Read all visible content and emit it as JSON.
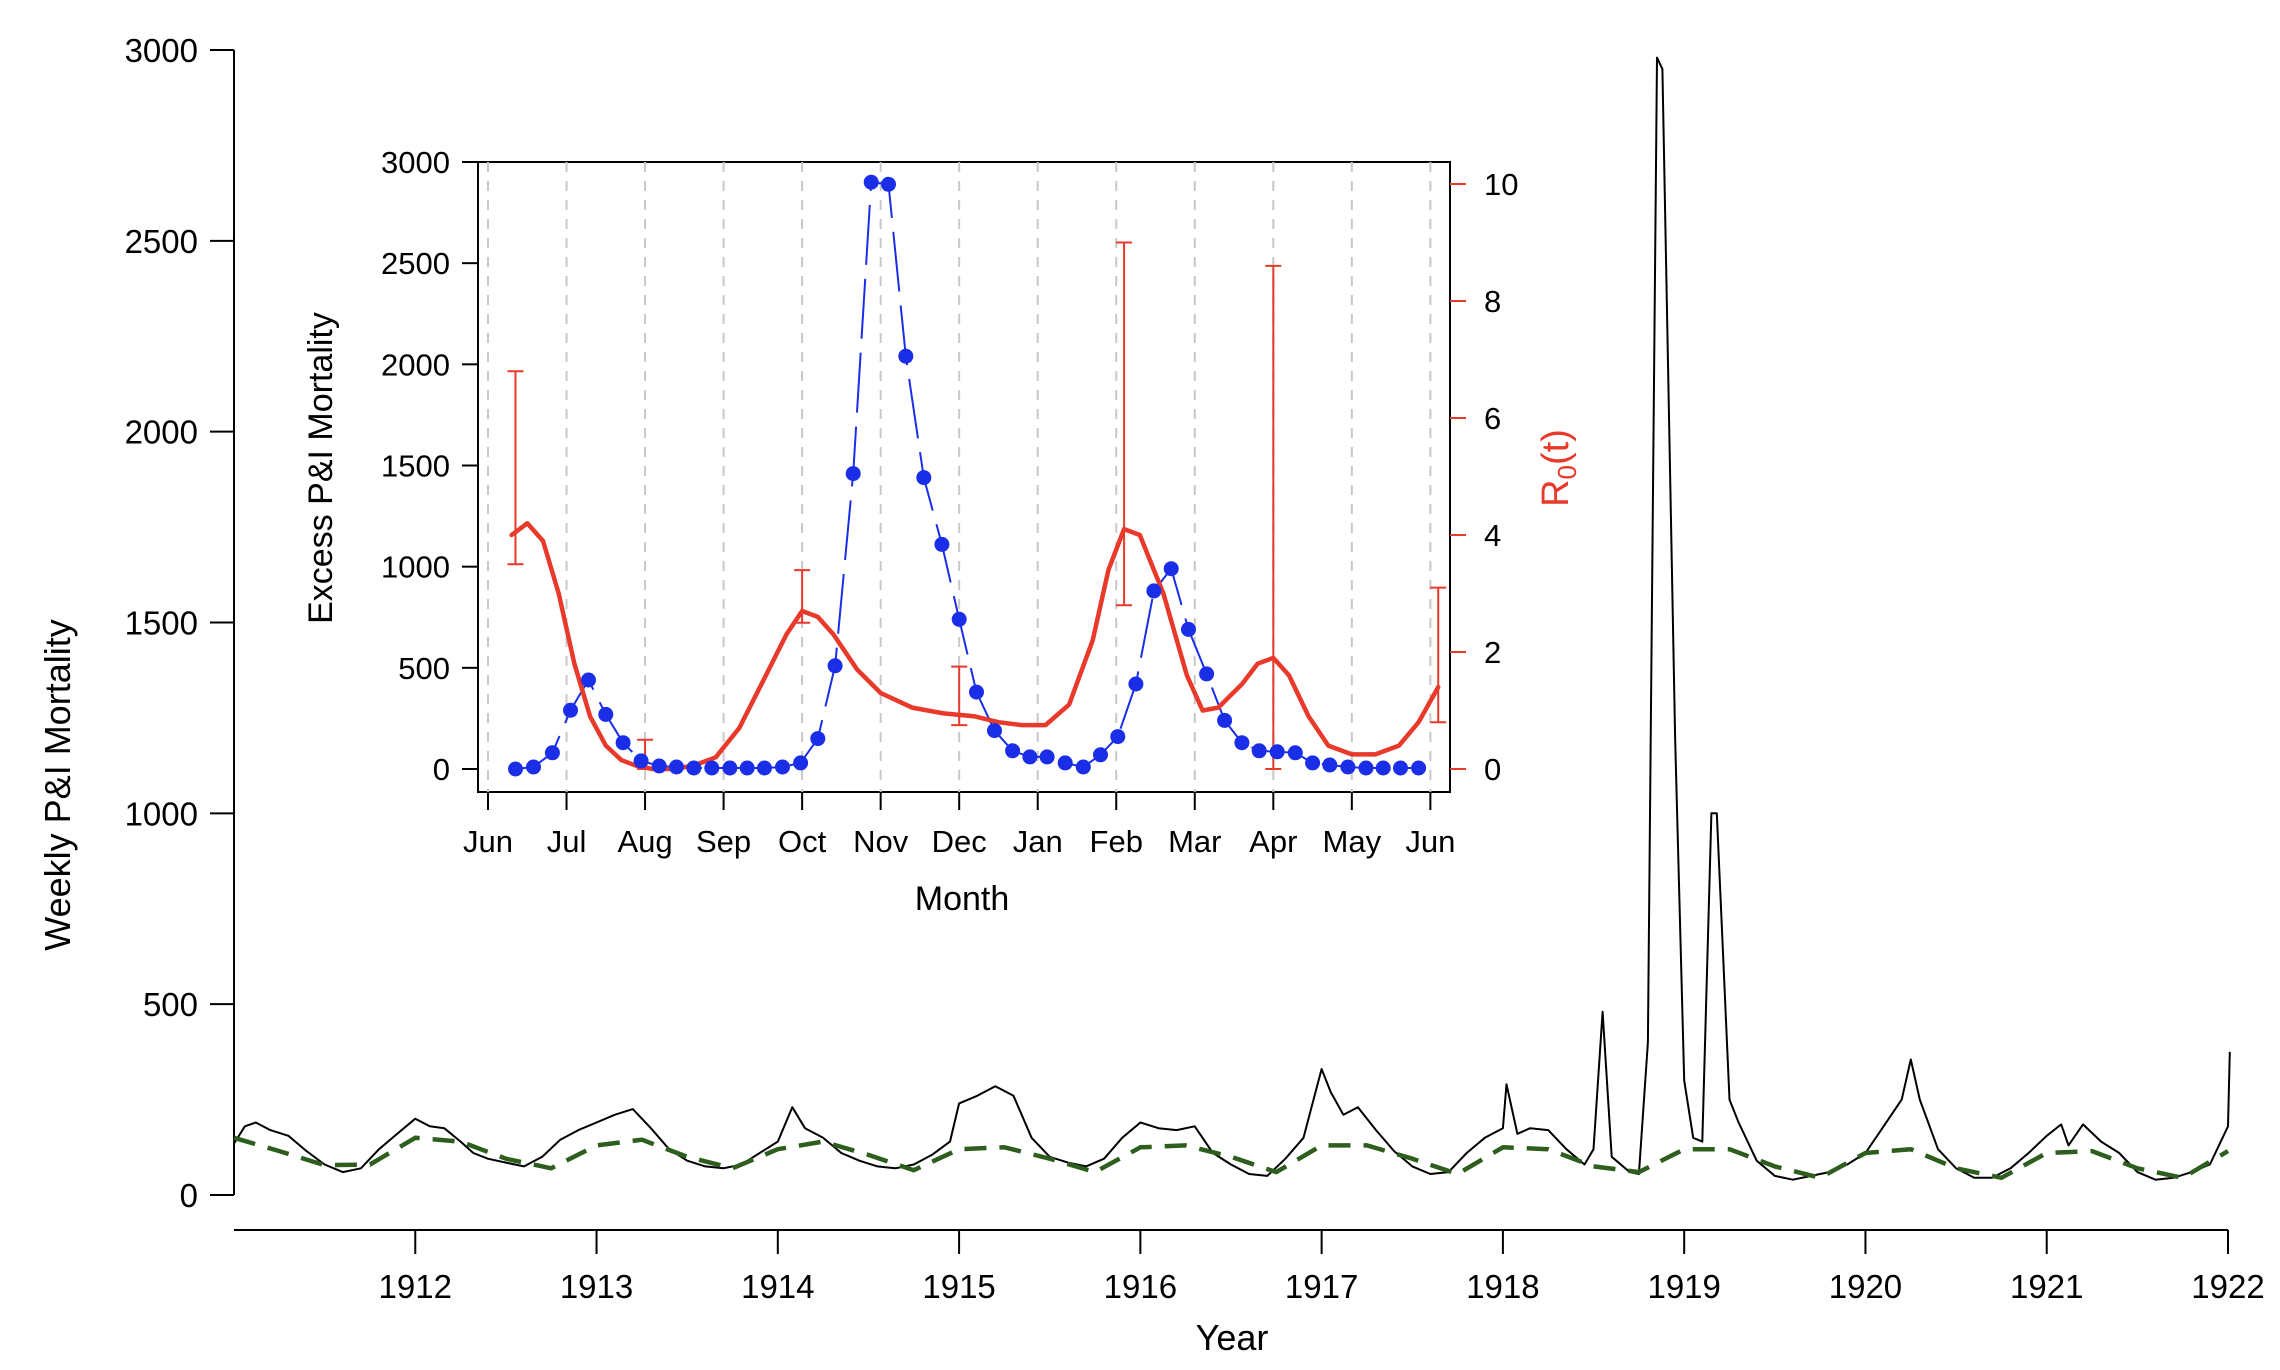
{
  "chart_data": [
    {
      "type": "line",
      "xlabel": "Year",
      "ylabel": "Weekly P&I Mortality",
      "xlim": [
        1911.0,
        1922.0
      ],
      "ylim": [
        0,
        3000
      ],
      "x_ticks": [
        "1912",
        "1913",
        "1914",
        "1915",
        "1916",
        "1917",
        "1918",
        "1919",
        "1920",
        "1921",
        "1922"
      ],
      "y_ticks": [
        "0",
        "500",
        "1000",
        "1500",
        "2000",
        "2500",
        "3000"
      ],
      "colors": {
        "observed": "#000000",
        "baseline": "#2e5e1e"
      },
      "series": [
        {
          "key": "observed",
          "style": "solid",
          "points": [
            [
              1911.0,
              135
            ],
            [
              1911.06,
              180
            ],
            [
              1911.12,
              190
            ],
            [
              1911.2,
              170
            ],
            [
              1911.3,
              155
            ],
            [
              1911.4,
              115
            ],
            [
              1911.5,
              80
            ],
            [
              1911.6,
              60
            ],
            [
              1911.7,
              70
            ],
            [
              1911.8,
              120
            ],
            [
              1911.9,
              160
            ],
            [
              1912.0,
              200
            ],
            [
              1912.08,
              180
            ],
            [
              1912.16,
              175
            ],
            [
              1912.25,
              140
            ],
            [
              1912.32,
              110
            ],
            [
              1912.4,
              95
            ],
            [
              1912.5,
              85
            ],
            [
              1912.6,
              75
            ],
            [
              1912.7,
              100
            ],
            [
              1912.8,
              145
            ],
            [
              1912.9,
              170
            ],
            [
              1913.0,
              190
            ],
            [
              1913.1,
              210
            ],
            [
              1913.2,
              225
            ],
            [
              1913.3,
              175
            ],
            [
              1913.4,
              120
            ],
            [
              1913.5,
              90
            ],
            [
              1913.6,
              75
            ],
            [
              1913.7,
              70
            ],
            [
              1913.8,
              80
            ],
            [
              1913.9,
              110
            ],
            [
              1914.0,
              140
            ],
            [
              1914.08,
              230
            ],
            [
              1914.15,
              175
            ],
            [
              1914.25,
              150
            ],
            [
              1914.35,
              110
            ],
            [
              1914.45,
              90
            ],
            [
              1914.55,
              75
            ],
            [
              1914.65,
              70
            ],
            [
              1914.75,
              80
            ],
            [
              1914.85,
              105
            ],
            [
              1914.95,
              140
            ],
            [
              1915.0,
              240
            ],
            [
              1915.1,
              260
            ],
            [
              1915.2,
              285
            ],
            [
              1915.3,
              260
            ],
            [
              1915.4,
              150
            ],
            [
              1915.5,
              100
            ],
            [
              1915.6,
              85
            ],
            [
              1915.7,
              75
            ],
            [
              1915.8,
              95
            ],
            [
              1915.9,
              150
            ],
            [
              1916.0,
              190
            ],
            [
              1916.1,
              175
            ],
            [
              1916.2,
              170
            ],
            [
              1916.3,
              180
            ],
            [
              1916.4,
              110
            ],
            [
              1916.5,
              80
            ],
            [
              1916.6,
              55
            ],
            [
              1916.7,
              50
            ],
            [
              1916.8,
              95
            ],
            [
              1916.9,
              150
            ],
            [
              1917.0,
              330
            ],
            [
              1917.05,
              270
            ],
            [
              1917.12,
              210
            ],
            [
              1917.2,
              230
            ],
            [
              1917.3,
              170
            ],
            [
              1917.4,
              115
            ],
            [
              1917.5,
              75
            ],
            [
              1917.6,
              55
            ],
            [
              1917.7,
              60
            ],
            [
              1917.8,
              110
            ],
            [
              1917.9,
              150
            ],
            [
              1918.0,
              175
            ],
            [
              1918.02,
              290
            ],
            [
              1918.08,
              160
            ],
            [
              1918.15,
              175
            ],
            [
              1918.25,
              170
            ],
            [
              1918.35,
              120
            ],
            [
              1918.45,
              80
            ],
            [
              1918.5,
              120
            ],
            [
              1918.55,
              480
            ],
            [
              1918.6,
              100
            ],
            [
              1918.7,
              60
            ],
            [
              1918.75,
              55
            ],
            [
              1918.8,
              400
            ],
            [
              1918.85,
              2980
            ],
            [
              1918.88,
              2950
            ],
            [
              1918.95,
              1200
            ],
            [
              1919.0,
              300
            ],
            [
              1919.05,
              150
            ],
            [
              1919.1,
              140
            ],
            [
              1919.15,
              1000
            ],
            [
              1919.18,
              1000
            ],
            [
              1919.25,
              250
            ],
            [
              1919.3,
              190
            ],
            [
              1919.4,
              90
            ],
            [
              1919.5,
              50
            ],
            [
              1919.6,
              40
            ],
            [
              1919.7,
              50
            ],
            [
              1919.8,
              60
            ],
            [
              1919.9,
              80
            ],
            [
              1920.0,
              110
            ],
            [
              1920.1,
              180
            ],
            [
              1920.2,
              250
            ],
            [
              1920.25,
              355
            ],
            [
              1920.3,
              250
            ],
            [
              1920.4,
              120
            ],
            [
              1920.5,
              70
            ],
            [
              1920.6,
              45
            ],
            [
              1920.7,
              45
            ],
            [
              1920.8,
              70
            ],
            [
              1920.9,
              110
            ],
            [
              1921.0,
              155
            ],
            [
              1921.08,
              185
            ],
            [
              1921.12,
              130
            ],
            [
              1921.2,
              185
            ],
            [
              1921.3,
              140
            ],
            [
              1921.4,
              110
            ],
            [
              1921.5,
              60
            ],
            [
              1921.6,
              40
            ],
            [
              1921.7,
              45
            ],
            [
              1921.8,
              60
            ],
            [
              1921.9,
              80
            ],
            [
              1922.0,
              180
            ],
            [
              1922.01,
              375
            ]
          ]
        },
        {
          "key": "baseline",
          "style": "dashed",
          "points": [
            [
              1911.0,
              150
            ],
            [
              1911.25,
              115
            ],
            [
              1911.5,
              78
            ],
            [
              1911.75,
              80
            ],
            [
              1912.0,
              150
            ],
            [
              1912.25,
              140
            ],
            [
              1912.5,
              95
            ],
            [
              1912.75,
              70
            ],
            [
              1913.0,
              130
            ],
            [
              1913.25,
              145
            ],
            [
              1913.5,
              100
            ],
            [
              1913.75,
              70
            ],
            [
              1914.0,
              120
            ],
            [
              1914.25,
              140
            ],
            [
              1914.5,
              105
            ],
            [
              1914.75,
              65
            ],
            [
              1915.0,
              120
            ],
            [
              1915.25,
              125
            ],
            [
              1915.5,
              95
            ],
            [
              1915.75,
              60
            ],
            [
              1916.0,
              125
            ],
            [
              1916.25,
              130
            ],
            [
              1916.5,
              100
            ],
            [
              1916.75,
              60
            ],
            [
              1917.0,
              130
            ],
            [
              1917.25,
              130
            ],
            [
              1917.5,
              95
            ],
            [
              1917.75,
              55
            ],
            [
              1918.0,
              125
            ],
            [
              1918.25,
              120
            ],
            [
              1918.5,
              75
            ],
            [
              1918.75,
              60
            ],
            [
              1919.0,
              120
            ],
            [
              1919.25,
              120
            ],
            [
              1919.5,
              75
            ],
            [
              1919.75,
              45
            ],
            [
              1920.0,
              110
            ],
            [
              1920.25,
              120
            ],
            [
              1920.5,
              70
            ],
            [
              1920.75,
              45
            ],
            [
              1921.0,
              110
            ],
            [
              1921.25,
              115
            ],
            [
              1921.5,
              70
            ],
            [
              1921.75,
              45
            ],
            [
              1922.0,
              115
            ]
          ]
        }
      ]
    },
    {
      "type": "scatter",
      "xlabel": "Month",
      "ylabel": "Excess P&I Mortality",
      "y2label_main": "R",
      "y2label_sub": "0",
      "y2label_tail": "(t)",
      "x_ticks": [
        "Jun",
        "Jul",
        "Aug",
        "Sep",
        "Oct",
        "Nov",
        "Dec",
        "Jan",
        "Feb",
        "Mar",
        "Apr",
        "May",
        "Jun"
      ],
      "xlim": [
        0,
        12.25
      ],
      "ylim": [
        -100,
        3000
      ],
      "y_ticks": [
        "0",
        "500",
        "1000",
        "1500",
        "2000",
        "2500",
        "3000"
      ],
      "y2lim": [
        -0.5,
        10.5
      ],
      "y2_ticks": [
        "0",
        "2",
        "4",
        "6",
        "8",
        "10"
      ],
      "gridlines": "dashed vertical at each month",
      "colors": {
        "mortality": "#1a2ee8",
        "r0": "#e8392b",
        "grid": "#c8c8c8"
      },
      "mortality_points": [
        [
          0.35,
          0
        ],
        [
          0.58,
          10
        ],
        [
          0.82,
          80
        ],
        [
          1.05,
          290
        ],
        [
          1.28,
          440
        ],
        [
          1.5,
          270
        ],
        [
          1.72,
          130
        ],
        [
          1.95,
          40
        ],
        [
          2.18,
          15
        ],
        [
          2.4,
          10
        ],
        [
          2.62,
          5
        ],
        [
          2.85,
          5
        ],
        [
          3.08,
          5
        ],
        [
          3.3,
          5
        ],
        [
          3.52,
          5
        ],
        [
          3.75,
          10
        ],
        [
          3.98,
          30
        ],
        [
          4.2,
          150
        ],
        [
          4.42,
          510
        ],
        [
          4.65,
          1460
        ],
        [
          4.88,
          2900
        ],
        [
          5.1,
          2890
        ],
        [
          5.32,
          2040
        ],
        [
          5.55,
          1440
        ],
        [
          5.78,
          1110
        ],
        [
          6.0,
          740
        ],
        [
          6.22,
          380
        ],
        [
          6.45,
          190
        ],
        [
          6.68,
          90
        ],
        [
          6.9,
          60
        ],
        [
          7.12,
          60
        ],
        [
          7.35,
          30
        ],
        [
          7.58,
          10
        ],
        [
          7.8,
          70
        ],
        [
          8.02,
          160
        ],
        [
          8.25,
          420
        ],
        [
          8.48,
          880
        ],
        [
          8.7,
          990
        ],
        [
          8.92,
          690
        ],
        [
          9.15,
          470
        ],
        [
          9.38,
          240
        ],
        [
          9.6,
          130
        ],
        [
          9.82,
          90
        ],
        [
          10.05,
          85
        ],
        [
          10.28,
          80
        ],
        [
          10.5,
          30
        ],
        [
          10.72,
          20
        ],
        [
          10.95,
          10
        ],
        [
          11.18,
          5
        ],
        [
          11.4,
          5
        ],
        [
          11.62,
          5
        ],
        [
          11.85,
          5
        ]
      ],
      "mortality_line_gaps": "drawn as dashed connecting line",
      "r0_curve": [
        [
          0.3,
          4.0
        ],
        [
          0.5,
          4.2
        ],
        [
          0.7,
          3.9
        ],
        [
          0.9,
          3.0
        ],
        [
          1.1,
          1.8
        ],
        [
          1.3,
          0.9
        ],
        [
          1.5,
          0.4
        ],
        [
          1.7,
          0.15
        ],
        [
          1.9,
          0.05
        ],
        [
          2.1,
          0.0
        ],
        [
          2.3,
          0.0
        ],
        [
          2.6,
          0.05
        ],
        [
          2.9,
          0.2
        ],
        [
          3.2,
          0.7
        ],
        [
          3.5,
          1.5
        ],
        [
          3.8,
          2.3
        ],
        [
          4.0,
          2.7
        ],
        [
          4.2,
          2.6
        ],
        [
          4.4,
          2.3
        ],
        [
          4.7,
          1.7
        ],
        [
          5.0,
          1.3
        ],
        [
          5.4,
          1.05
        ],
        [
          5.8,
          0.95
        ],
        [
          6.2,
          0.9
        ],
        [
          6.5,
          0.8
        ],
        [
          6.8,
          0.75
        ],
        [
          7.1,
          0.75
        ],
        [
          7.4,
          1.1
        ],
        [
          7.7,
          2.2
        ],
        [
          7.9,
          3.4
        ],
        [
          8.1,
          4.1
        ],
        [
          8.3,
          4.0
        ],
        [
          8.6,
          3.0
        ],
        [
          8.9,
          1.6
        ],
        [
          9.1,
          1.0
        ],
        [
          9.3,
          1.05
        ],
        [
          9.6,
          1.45
        ],
        [
          9.8,
          1.8
        ],
        [
          10.0,
          1.9
        ],
        [
          10.2,
          1.6
        ],
        [
          10.45,
          0.9
        ],
        [
          10.7,
          0.4
        ],
        [
          11.0,
          0.25
        ],
        [
          11.3,
          0.25
        ],
        [
          11.6,
          0.4
        ],
        [
          11.85,
          0.8
        ],
        [
          12.1,
          1.4
        ]
      ],
      "r0_errorbars": [
        [
          0.35,
          3.5,
          6.8
        ],
        [
          2.0,
          0.0,
          0.5
        ],
        [
          4.0,
          2.5,
          3.4
        ],
        [
          6.0,
          0.75,
          1.75
        ],
        [
          8.1,
          2.8,
          9.0
        ],
        [
          10.0,
          0.0,
          8.6
        ],
        [
          12.1,
          0.8,
          3.1
        ]
      ]
    }
  ]
}
